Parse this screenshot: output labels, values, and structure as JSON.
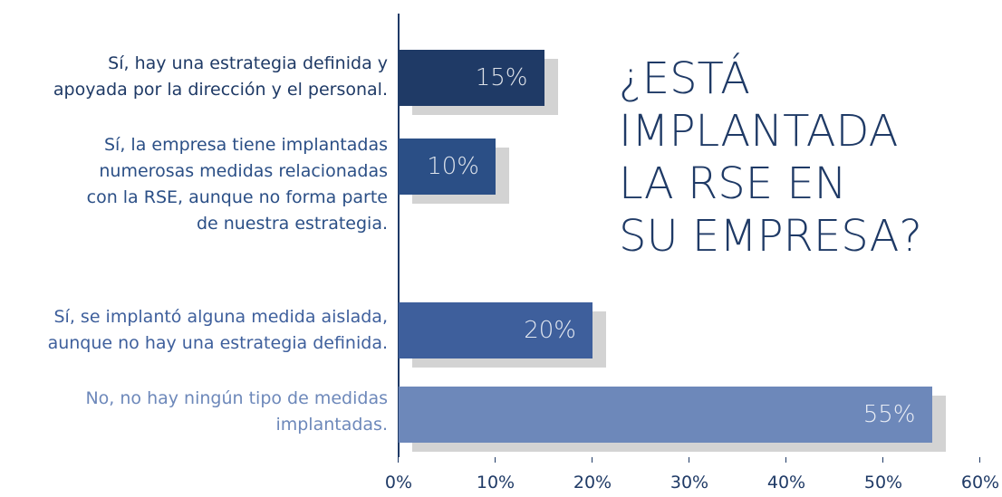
{
  "chart_data": {
    "type": "bar",
    "orientation": "horizontal",
    "title": "¿ESTÁ\nIMPLANTADA\nLA RSE EN\nSU EMPRESA?",
    "categories": [
      "Sí, hay una estrategia definida y\napoyada por la dirección y el personal.",
      "Sí, la empresa tiene implantadas\nnumerosas medidas relacionadas\ncon la RSE, aunque no forma parte\nde nuestra estrategia.",
      "Sí, se implantó alguna medida aislada,\naunque no hay una estrategia definida.",
      "No, no hay ningún tipo de medidas\nimplantadas."
    ],
    "values": [
      15,
      10,
      20,
      55
    ],
    "value_labels": [
      "15%",
      "10%",
      "20%",
      "55%"
    ],
    "colors": [
      "#1f3a66",
      "#2b4f86",
      "#3e5f9c",
      "#6d88ba"
    ],
    "xlim": [
      0,
      60
    ],
    "xticks": [
      {
        "value": 0,
        "label": "0%"
      },
      {
        "value": 10,
        "label": "10%"
      },
      {
        "value": 20,
        "label": "20%"
      },
      {
        "value": 30,
        "label": "30%"
      },
      {
        "value": 40,
        "label": "40%"
      },
      {
        "value": 50,
        "label": "50%"
      },
      {
        "value": 60,
        "label": "60%"
      }
    ]
  }
}
